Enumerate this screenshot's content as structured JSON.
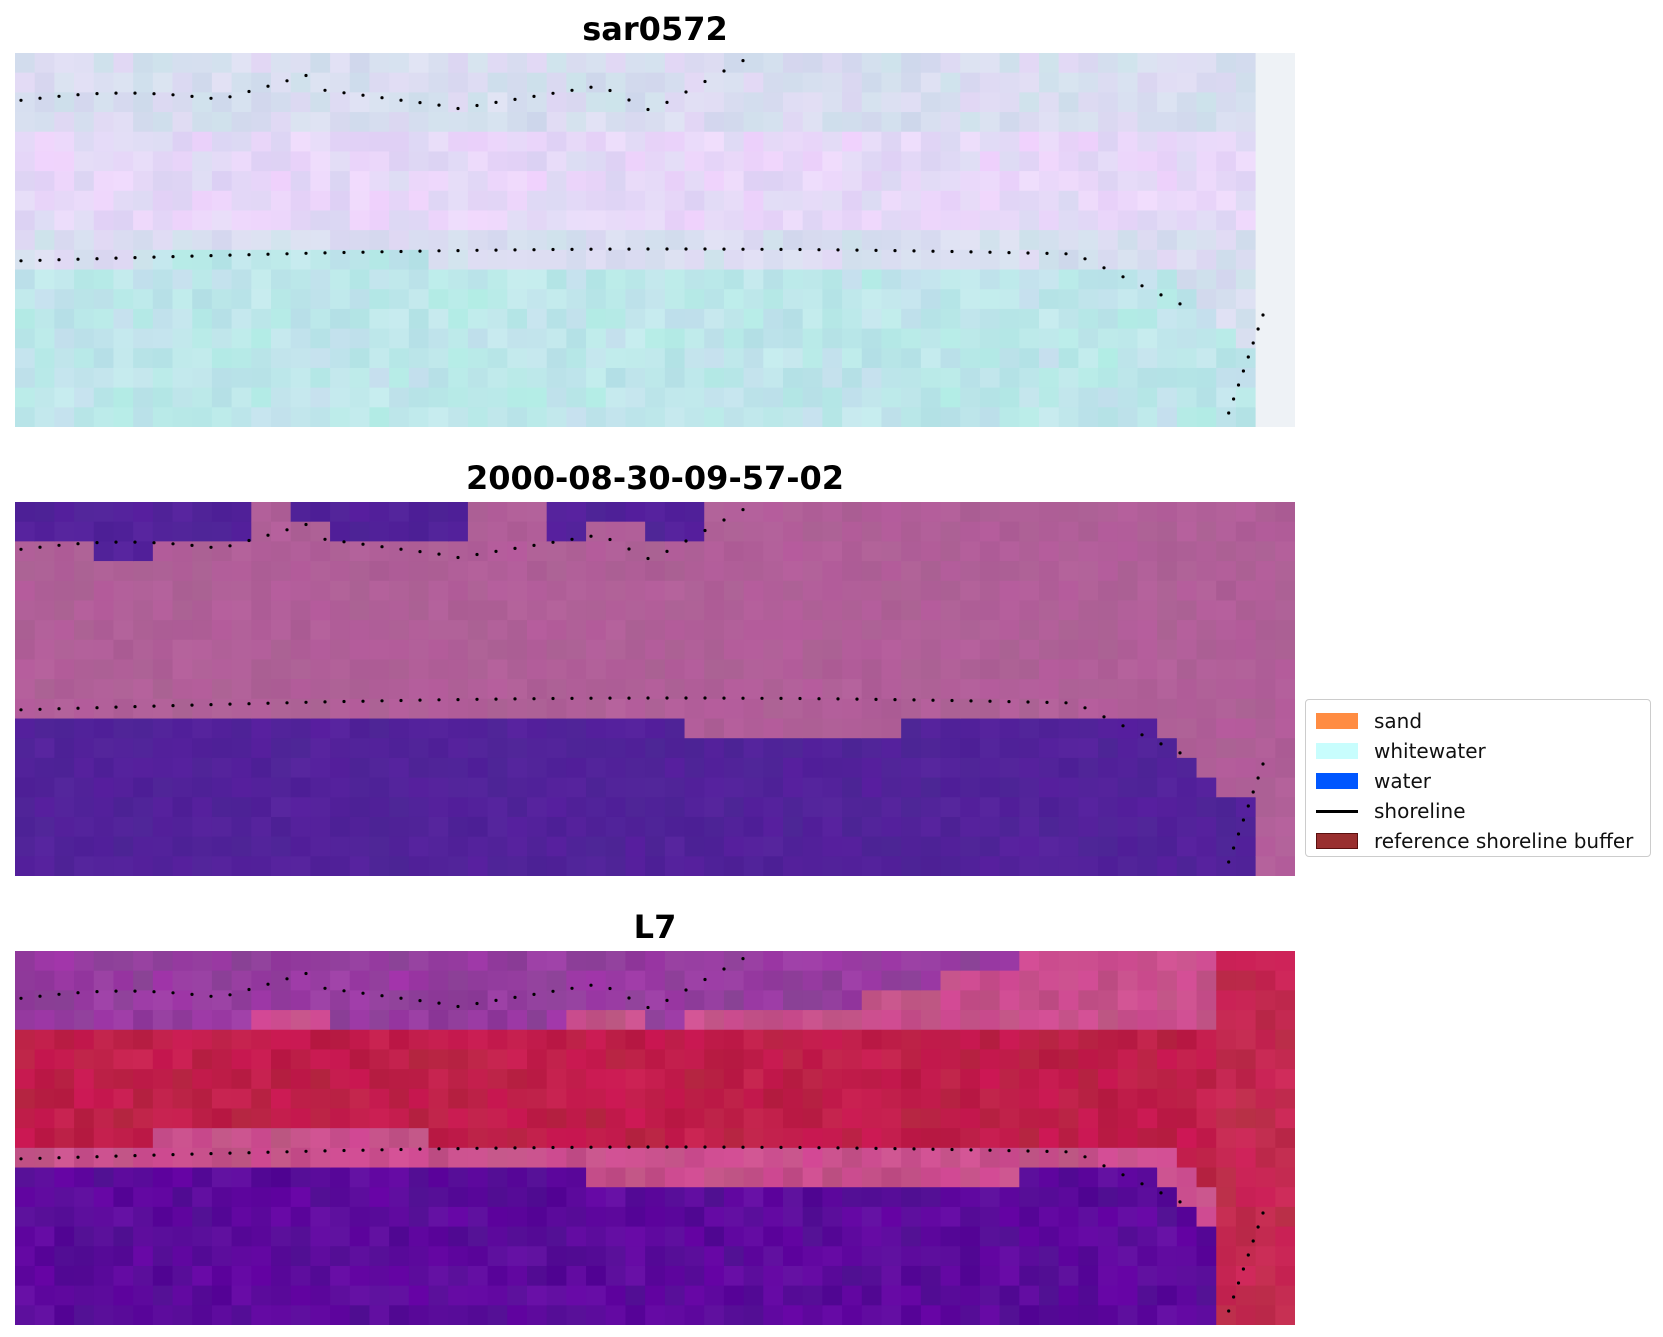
{
  "panels": [
    {
      "title": "sar0572",
      "kind": "sar"
    },
    {
      "title": "2000-08-30-09-57-02",
      "kind": "classified"
    },
    {
      "title": "L7",
      "kind": "rgb"
    }
  ],
  "legend": {
    "items": [
      {
        "label": "sand",
        "type": "patch",
        "color": "#ff8c42"
      },
      {
        "label": "whitewater",
        "type": "patch",
        "color": "#c8fdfd"
      },
      {
        "label": "water",
        "type": "patch",
        "color": "#0057ff"
      },
      {
        "label": "shoreline",
        "type": "line",
        "color": "#000000"
      },
      {
        "label": "reference shoreline buffer",
        "type": "patch",
        "color": "#992f2f"
      }
    ]
  },
  "colors": {
    "sar_land": "#d8ddf0",
    "sar_water": "#bde6ea",
    "class_land": "#b05f98",
    "class_water": "#52229a",
    "rgb_sand": "#c01e4a",
    "rgb_water": "#5c0a9c"
  }
}
